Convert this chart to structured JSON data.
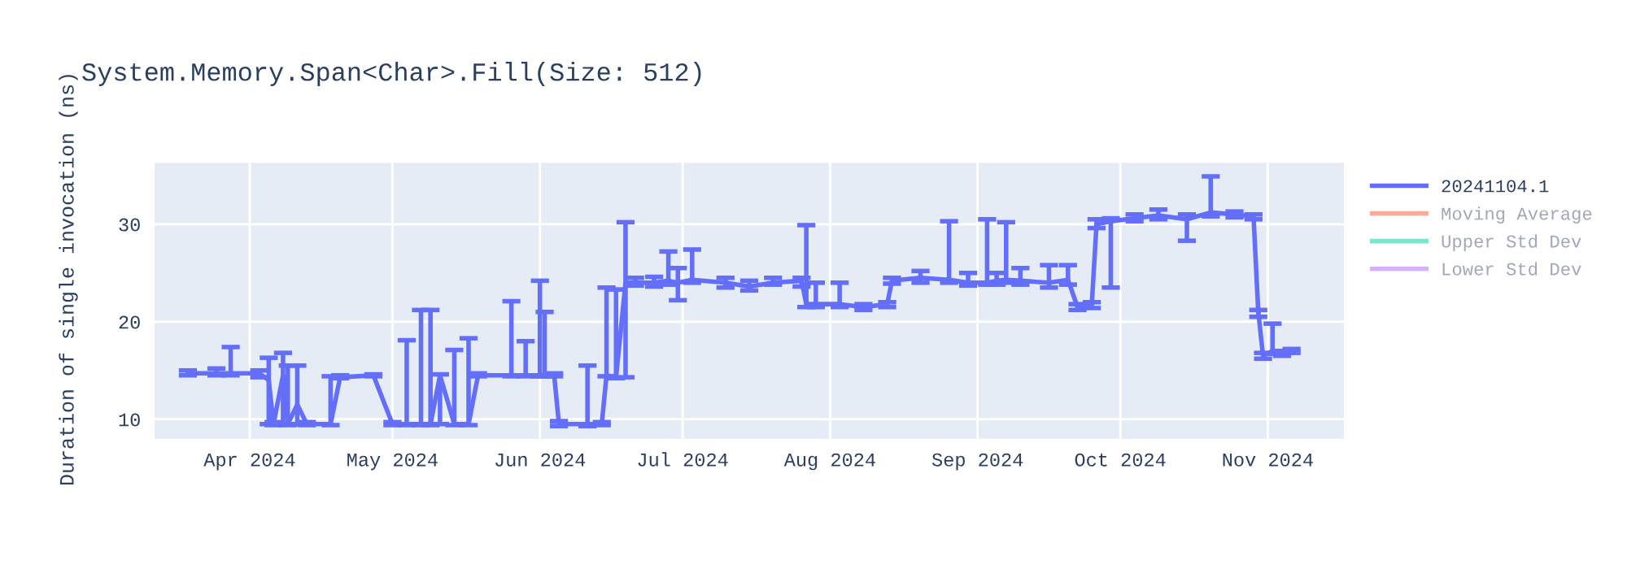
{
  "chart_data": {
    "type": "line",
    "title": "System.Memory.Span<Char>.Fill(Size: 512)",
    "ylabel": "Duration of single invocation (ns)",
    "x": [
      "2024-03-19",
      "2024-03-25",
      "2024-03-28",
      "2024-04-03",
      "2024-04-05",
      "2024-04-06",
      "2024-04-08",
      "2024-04-09",
      "2024-04-11",
      "2024-04-13",
      "2024-04-18",
      "2024-04-20",
      "2024-04-27",
      "2024-05-01",
      "2024-05-04",
      "2024-05-07",
      "2024-05-09",
      "2024-05-11",
      "2024-05-14",
      "2024-05-17",
      "2024-05-19",
      "2024-05-26",
      "2024-05-29",
      "2024-06-01",
      "2024-06-02",
      "2024-06-04",
      "2024-06-05",
      "2024-06-11",
      "2024-06-14",
      "2024-06-15",
      "2024-06-17",
      "2024-06-19",
      "2024-06-21",
      "2024-06-25",
      "2024-06-28",
      "2024-06-30",
      "2024-07-03",
      "2024-07-10",
      "2024-07-15",
      "2024-07-20",
      "2024-07-26",
      "2024-07-27",
      "2024-07-29",
      "2024-08-03",
      "2024-08-08",
      "2024-08-13",
      "2024-08-14",
      "2024-08-20",
      "2024-08-26",
      "2024-08-30",
      "2024-09-03",
      "2024-09-05",
      "2024-09-07",
      "2024-09-10",
      "2024-09-16",
      "2024-09-20",
      "2024-09-22",
      "2024-09-25",
      "2024-09-26",
      "2024-09-29",
      "2024-10-04",
      "2024-10-09",
      "2024-10-15",
      "2024-10-20",
      "2024-10-25",
      "2024-10-29",
      "2024-10-30",
      "2024-10-31",
      "2024-11-02",
      "2024-11-04",
      "2024-11-06"
    ],
    "series": [
      {
        "name": "20241104.1",
        "color": "#636efa",
        "values": [
          14.7,
          14.7,
          14.7,
          14.7,
          14.0,
          9.5,
          14.5,
          9.5,
          11.5,
          9.5,
          9.5,
          14.3,
          14.5,
          9.5,
          9.5,
          9.5,
          9.5,
          14.5,
          9.5,
          9.5,
          14.5,
          14.5,
          14.5,
          14.5,
          14.5,
          14.5,
          9.5,
          9.5,
          9.5,
          14.5,
          14.3,
          24.0,
          24.0,
          24.0,
          24.2,
          24.0,
          24.3,
          24.0,
          23.6,
          24.0,
          24.2,
          21.8,
          21.8,
          21.8,
          21.5,
          21.8,
          24.2,
          24.5,
          24.3,
          24.0,
          24.0,
          24.2,
          24.3,
          24.2,
          24.0,
          24.3,
          21.5,
          21.7,
          30.0,
          30.3,
          30.6,
          30.9,
          30.5,
          31.2,
          31.0,
          30.8,
          21.0,
          16.5,
          17.0,
          16.7,
          17.0
        ],
        "errors": [
          [
            14.5,
            15.0
          ],
          [
            14.5,
            15.2
          ],
          [
            14.5,
            17.4
          ],
          [
            14.3,
            15.0
          ],
          [
            9.5,
            16.3
          ],
          [
            9.4,
            9.7
          ],
          [
            9.5,
            16.8
          ],
          [
            9.4,
            15.5
          ],
          [
            9.5,
            15.5
          ],
          [
            9.4,
            9.7
          ],
          [
            9.4,
            14.4
          ],
          [
            14.2,
            14.5
          ],
          [
            14.4,
            14.6
          ],
          [
            9.4,
            9.7
          ],
          [
            9.4,
            18.1
          ],
          [
            9.4,
            21.2
          ],
          [
            9.4,
            21.2
          ],
          [
            9.5,
            14.6
          ],
          [
            9.4,
            17.1
          ],
          [
            9.4,
            18.3
          ],
          [
            14.4,
            14.7
          ],
          [
            14.4,
            22.1
          ],
          [
            14.4,
            18.0
          ],
          [
            14.4,
            24.2
          ],
          [
            14.4,
            21.0
          ],
          [
            14.4,
            14.7
          ],
          [
            9.3,
            9.8
          ],
          [
            9.3,
            15.5
          ],
          [
            9.4,
            9.7
          ],
          [
            14.4,
            23.5
          ],
          [
            14.2,
            23.3
          ],
          [
            14.3,
            30.2
          ],
          [
            23.7,
            24.5
          ],
          [
            23.6,
            24.6
          ],
          [
            23.8,
            27.2
          ],
          [
            22.2,
            25.5
          ],
          [
            24.0,
            27.4
          ],
          [
            23.5,
            24.5
          ],
          [
            23.2,
            24.2
          ],
          [
            23.8,
            24.5
          ],
          [
            23.6,
            24.5
          ],
          [
            21.5,
            29.9
          ],
          [
            21.5,
            24.0
          ],
          [
            21.5,
            24.0
          ],
          [
            21.2,
            21.8
          ],
          [
            21.5,
            22.0
          ],
          [
            23.9,
            24.5
          ],
          [
            24.0,
            25.2
          ],
          [
            24.0,
            30.3
          ],
          [
            23.7,
            25.0
          ],
          [
            23.8,
            30.5
          ],
          [
            23.8,
            25.0
          ],
          [
            24.0,
            30.2
          ],
          [
            23.8,
            25.5
          ],
          [
            23.5,
            25.8
          ],
          [
            23.8,
            25.8
          ],
          [
            21.2,
            21.8
          ],
          [
            21.4,
            22.0
          ],
          [
            29.6,
            30.5
          ],
          [
            23.5,
            30.6
          ],
          [
            30.3,
            31.0
          ],
          [
            30.5,
            31.5
          ],
          [
            28.3,
            31.0
          ],
          [
            30.8,
            34.9
          ],
          [
            30.7,
            31.3
          ],
          [
            30.5,
            31.0
          ],
          [
            20.5,
            21.2
          ],
          [
            16.2,
            16.8
          ],
          [
            16.7,
            19.8
          ],
          [
            16.5,
            17.0
          ],
          [
            16.8,
            17.2
          ]
        ]
      },
      {
        "name": "Moving Average",
        "color": "#ef553b",
        "values": [
          null,
          null,
          null,
          null,
          null,
          null,
          null,
          null,
          null,
          null,
          null,
          null,
          null,
          null,
          null,
          null,
          null,
          null,
          null,
          null,
          null,
          null,
          null,
          null,
          null,
          null,
          null,
          null,
          null,
          null,
          null,
          null,
          null,
          null,
          null,
          null,
          null,
          null,
          null,
          null,
          null,
          null,
          null,
          null,
          null,
          null,
          null,
          null,
          null,
          null,
          null,
          null,
          null,
          null,
          null,
          null,
          null,
          null,
          null,
          null,
          null,
          null,
          null,
          null,
          null,
          null,
          null,
          null,
          null,
          null,
          null
        ]
      },
      {
        "name": "Upper Std Dev",
        "color": "#00cc96",
        "values": [
          null,
          null,
          null,
          null,
          null,
          null,
          null,
          null,
          null,
          null,
          null,
          null,
          null,
          null,
          null,
          null,
          null,
          null,
          null,
          null,
          null,
          null,
          null,
          null,
          null,
          null,
          null,
          null,
          null,
          null,
          null,
          null,
          null,
          null,
          null,
          null,
          null,
          null,
          null,
          null,
          null,
          null,
          null,
          null,
          null,
          null,
          null,
          null,
          null,
          null,
          null,
          null,
          null,
          null,
          null,
          null,
          null,
          null,
          null,
          null,
          null,
          null,
          null,
          null,
          null,
          null,
          null,
          null,
          null,
          null,
          null
        ]
      },
      {
        "name": "Lower Std Dev",
        "color": "#ab63fa",
        "values": [
          null,
          null,
          null,
          null,
          null,
          null,
          null,
          null,
          null,
          null,
          null,
          null,
          null,
          null,
          null,
          null,
          null,
          null,
          null,
          null,
          null,
          null,
          null,
          null,
          null,
          null,
          null,
          null,
          null,
          null,
          null,
          null,
          null,
          null,
          null,
          null,
          null,
          null,
          null,
          null,
          null,
          null,
          null,
          null,
          null,
          null,
          null,
          null,
          null,
          null,
          null,
          null,
          null,
          null,
          null,
          null,
          null,
          null,
          null,
          null,
          null,
          null,
          null,
          null,
          null,
          null,
          null,
          null,
          null,
          null,
          null
        ]
      }
    ],
    "xlim": [
      "2024-03-12",
      "2024-11-17"
    ],
    "xticks": [
      {
        "value": "2024-04-01",
        "label": "Apr 2024"
      },
      {
        "value": "2024-05-01",
        "label": "May 2024"
      },
      {
        "value": "2024-06-01",
        "label": "Jun 2024"
      },
      {
        "value": "2024-07-01",
        "label": "Jul 2024"
      },
      {
        "value": "2024-08-01",
        "label": "Aug 2024"
      },
      {
        "value": "2024-09-01",
        "label": "Sep 2024"
      },
      {
        "value": "2024-10-01",
        "label": "Oct 2024"
      },
      {
        "value": "2024-11-01",
        "label": "Nov 2024"
      }
    ],
    "ylim": [
      8,
      36.3
    ],
    "yticks": [
      10,
      20,
      30
    ],
    "grid": true,
    "legend": "right",
    "marker": "none",
    "line_style": "solid"
  }
}
